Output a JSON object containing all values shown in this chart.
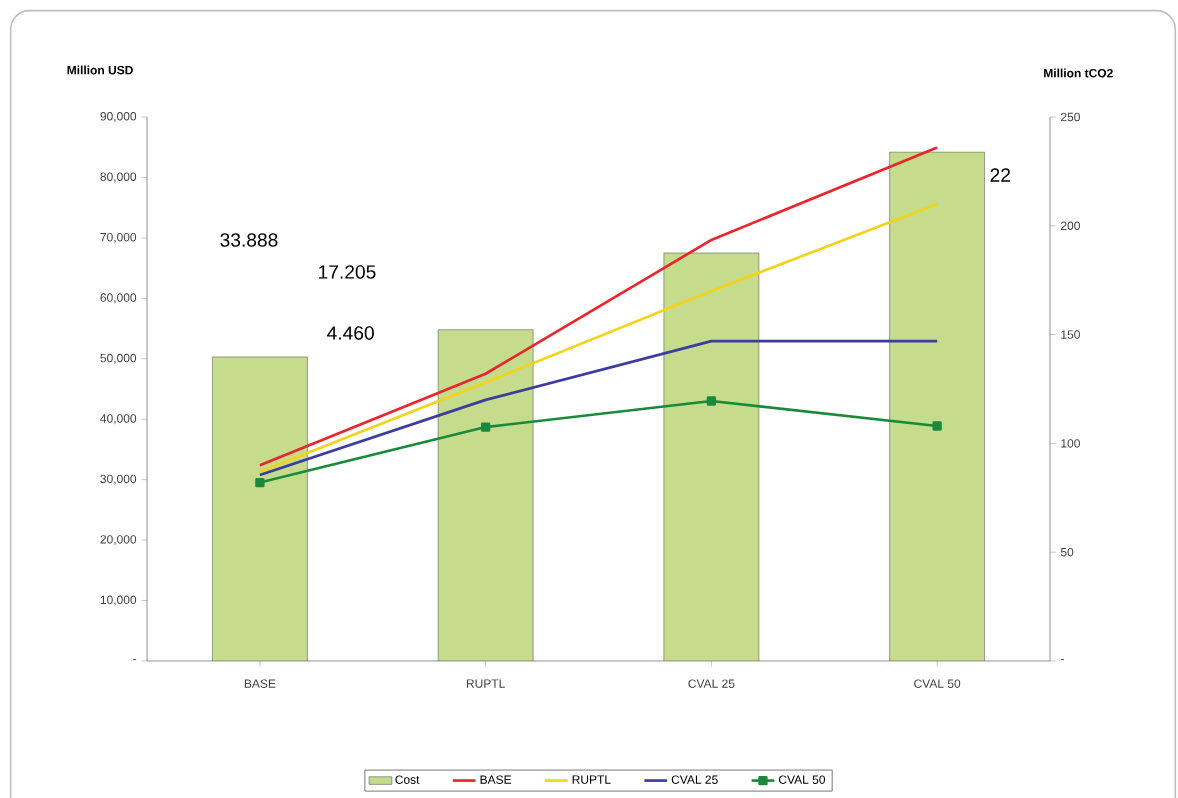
{
  "chart_data": {
    "type": "bar",
    "ylabel": "Million USD",
    "y2label": "Million tCO2",
    "categories": [
      "BASE",
      "RUPTL",
      "CVAL 25",
      "CVAL 50"
    ],
    "series": [
      {
        "name": "Cost",
        "type": "bar",
        "color": "#c4dc8c",
        "values": [
          50300,
          54800,
          67500,
          84200
        ]
      },
      {
        "name": "BASE",
        "type": "line",
        "axis": "y2",
        "color": "#e8262b",
        "marker": "none",
        "values": [
          90,
          132,
          193.5,
          236
        ]
      },
      {
        "name": "RUPTL",
        "type": "line",
        "axis": "y2",
        "color": "#f5d31c",
        "marker": "none",
        "values": [
          87,
          128,
          170,
          210
        ]
      },
      {
        "name": "CVAL 25",
        "type": "line",
        "axis": "y2",
        "color": "#3c3ca0",
        "marker": "none",
        "values": [
          85.5,
          120,
          147,
          147
        ]
      },
      {
        "name": "CVAL 50",
        "type": "line",
        "axis": "y2",
        "color": "#1a8a3a",
        "marker": "square",
        "values": [
          82,
          107.5,
          119.5,
          108
        ]
      }
    ],
    "ylim": [
      0,
      90000
    ],
    "yticks": [
      {
        "value": 0,
        "label": "-"
      },
      {
        "value": 10000,
        "label": "10,000"
      },
      {
        "value": 20000,
        "label": "20,000"
      },
      {
        "value": 30000,
        "label": "30,000"
      },
      {
        "value": 40000,
        "label": "40,000"
      },
      {
        "value": 50000,
        "label": "50,000"
      },
      {
        "value": 60000,
        "label": "60,000"
      },
      {
        "value": 70000,
        "label": "70,000"
      },
      {
        "value": 80000,
        "label": "80,000"
      },
      {
        "value": 90000,
        "label": "90,000"
      }
    ],
    "y2lim": [
      0,
      250
    ],
    "y2ticks": [
      {
        "value": 0,
        "label": "-"
      },
      50,
      100,
      150,
      200,
      250
    ],
    "annotations": [
      "33.888",
      "17.205",
      "4.460",
      "22"
    ],
    "legend": "bottom",
    "grid": false
  }
}
